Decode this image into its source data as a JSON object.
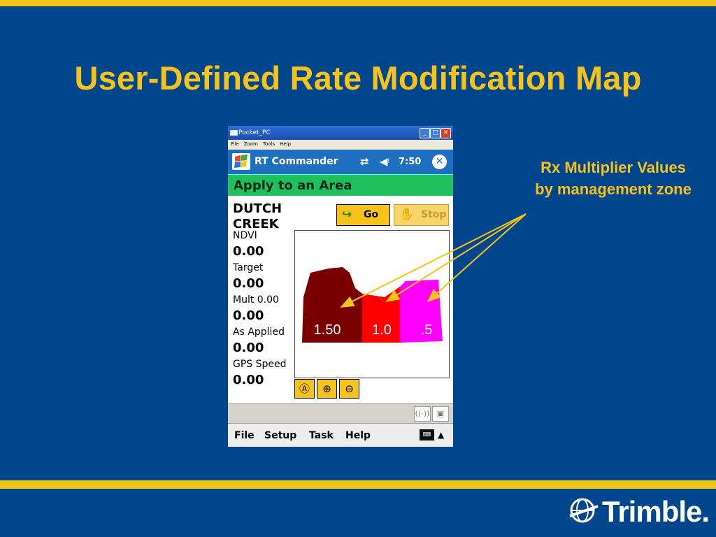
{
  "slide": {
    "title": "User-Defined Rate Modification Map",
    "callout": [
      "Rx Multiplier Values",
      "by management zone"
    ],
    "logo": "Trimble."
  },
  "window": {
    "title": "Pocket_PC",
    "menu": [
      "File",
      "Zoom",
      "Tools",
      "Help"
    ]
  },
  "app": {
    "title": "RT Commander",
    "clock": "7:50",
    "header": "Apply to an Area",
    "field_name": [
      "DUTCH",
      "CREEK"
    ],
    "go_label": "Go",
    "stop_label": "Stop",
    "readouts": [
      {
        "label": "NDVI",
        "value": "0.00"
      },
      {
        "label": "Target",
        "value": "0.00"
      },
      {
        "label": "Mult 0.00",
        "value": "0.00"
      },
      {
        "label": "As Applied",
        "value": "0.00"
      },
      {
        "label": "GPS Speed",
        "value": "0.00"
      }
    ],
    "zones": [
      {
        "label": "1.50",
        "color": "#7A0000"
      },
      {
        "label": "1.0",
        "color": "#FF0000"
      },
      {
        "label": ".5",
        "color": "#FF00FF"
      }
    ],
    "bottom_menu": [
      "File",
      "Setup",
      "Task",
      "Help"
    ]
  },
  "colors": {
    "background": "#00468C",
    "accent": "#F6C21C",
    "header_green": "#21C05E"
  },
  "icons": [
    "start-flag-icon",
    "sync-icon",
    "speaker-icon",
    "close-icon",
    "go-arrow-icon",
    "stop-hand-icon",
    "zoom-extent-icon",
    "zoom-in-icon",
    "zoom-out-icon",
    "gps-signal-icon",
    "radio-icon",
    "keyboard-icon",
    "trimble-globe-icon"
  ]
}
